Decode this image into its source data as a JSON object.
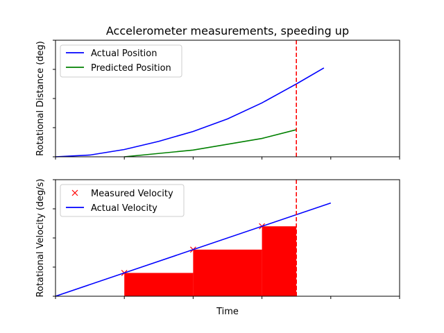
{
  "title": "Accelerometer measurements, speeding up",
  "colors": {
    "blue": "#0000ff",
    "green": "#008000",
    "red": "#ff0000",
    "black": "#000000"
  },
  "chart_data": [
    {
      "type": "line",
      "panel": "top",
      "title": "Accelerometer measurements, speeding up",
      "xlabel": "",
      "ylabel": "Rotational Distance (deg)",
      "xlim": [
        0,
        5
      ],
      "ylim": [
        0,
        4
      ],
      "xticks": [
        0,
        1,
        2,
        3,
        4,
        5
      ],
      "yticks": [
        0,
        1,
        2,
        3,
        4
      ],
      "tick_labels_shown": false,
      "legend": "top-left",
      "series": [
        {
          "name": "Actual Position",
          "color": "#0000ff",
          "x": [
            0,
            0.5,
            1.0,
            1.5,
            2.0,
            2.5,
            3.0,
            3.5,
            3.9
          ],
          "y": [
            0,
            0.06,
            0.25,
            0.53,
            0.87,
            1.3,
            1.85,
            2.5,
            3.05
          ]
        },
        {
          "name": "Predicted Position",
          "color": "#008000",
          "x": [
            1.0,
            2.0,
            3.0,
            3.5
          ],
          "y": [
            0,
            0.23,
            0.63,
            0.93
          ]
        }
      ],
      "vline": {
        "x": 3.5,
        "color": "#ff0000",
        "style": "dashed"
      }
    },
    {
      "type": "line",
      "panel": "bottom",
      "xlabel": "Time",
      "ylabel": "Rotational Velocity (deg/s)",
      "xlim": [
        0,
        5
      ],
      "ylim": [
        0,
        4
      ],
      "xticks": [
        0,
        1,
        2,
        3,
        4,
        5
      ],
      "yticks": [
        0,
        1,
        2,
        3,
        4
      ],
      "tick_labels_shown": false,
      "legend": "top-left",
      "series": [
        {
          "name": "Measured Velocity",
          "color": "#ff0000",
          "marker": "x",
          "x": [
            1,
            2,
            3
          ],
          "y": [
            0.8,
            1.6,
            2.4
          ]
        },
        {
          "name": "Actual Velocity",
          "color": "#0000ff",
          "x": [
            0,
            4
          ],
          "y": [
            0,
            3.2
          ]
        }
      ],
      "bars": {
        "color": "#ff0000",
        "x_start": [
          1,
          2,
          3
        ],
        "x_end": [
          2,
          3,
          3.5
        ],
        "heights": [
          0.8,
          1.6,
          2.4
        ]
      },
      "vline": {
        "x": 3.5,
        "color": "#ff0000",
        "style": "dashed"
      }
    }
  ]
}
